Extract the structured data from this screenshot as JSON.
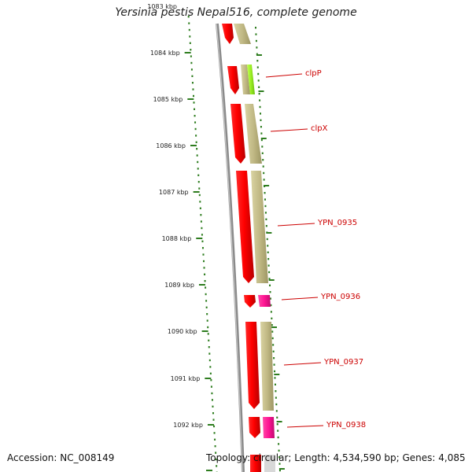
{
  "title": "Yersinia pestis Nepal516, complete genome",
  "accession_label": "Accession: NC_008149",
  "summary_label": "Topology: circular; Length: 4,534,590 bp; Genes: 4,085",
  "ticks": [
    {
      "label": "1083 kbp",
      "faded": true
    },
    {
      "label": "1084 kbp"
    },
    {
      "label": "1085 kbp"
    },
    {
      "label": "1086 kbp"
    },
    {
      "label": "1087 kbp"
    },
    {
      "label": "1088 kbp"
    },
    {
      "label": "1089 kbp"
    },
    {
      "label": "1090 kbp"
    },
    {
      "label": "1091 kbp"
    },
    {
      "label": "1092 kbp"
    }
  ],
  "gene_labels": [
    "clpP",
    "clpX",
    "YPN_0935",
    "YPN_0936",
    "YPN_0937",
    "YPN_0938"
  ],
  "colors": {
    "cds": "#ff0000",
    "gene": "#bdb681",
    "pink": "#ff1493",
    "lime": "#99ee22",
    "tick": "#2e7d1f",
    "backbone": "#888888",
    "label": "#cc0000"
  }
}
